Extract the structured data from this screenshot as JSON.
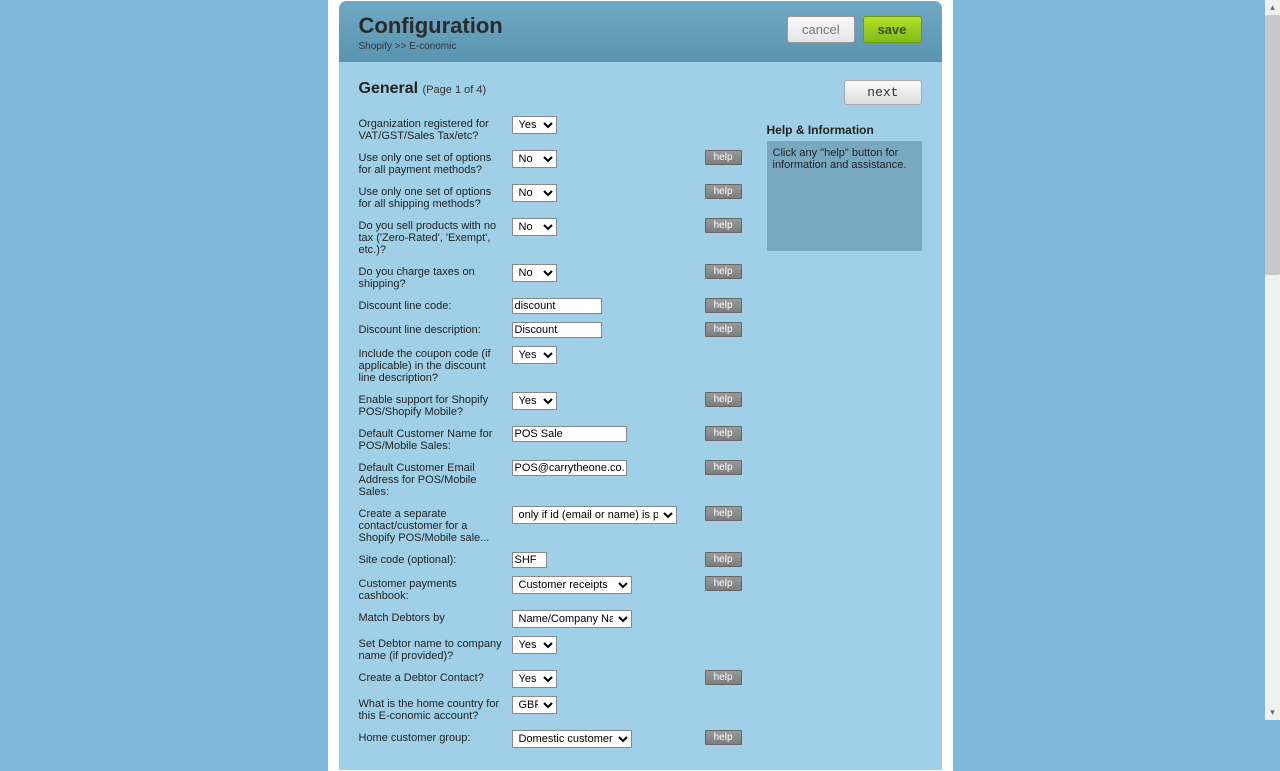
{
  "header": {
    "title": "Configuration",
    "breadcrumb": "Shopify >> E-conomic",
    "cancel": "cancel",
    "save": "save"
  },
  "section": {
    "title": "General",
    "pager": "(Page 1 of 4)",
    "next": "next"
  },
  "help": {
    "title": "Help & Information",
    "text": "Click any \"help\" button for information and assistance.",
    "button": "help"
  },
  "rows": [
    {
      "label": "Organization registered for VAT/GST/Sales Tax/etc?",
      "type": "select",
      "value": "Yes",
      "width": "narrow",
      "help": false
    },
    {
      "label": "Use only one set of options for all payment methods?",
      "type": "select",
      "value": "No",
      "width": "narrow",
      "help": true
    },
    {
      "label": "Use only one set of options for all shipping methods?",
      "type": "select",
      "value": "No",
      "width": "narrow",
      "help": true
    },
    {
      "label": "Do you sell products with no tax ('Zero-Rated', 'Exempt', etc.)?",
      "type": "select",
      "value": "No",
      "width": "narrow",
      "help": true
    },
    {
      "label": "Do you charge taxes on shipping?",
      "type": "select",
      "value": "No",
      "width": "narrow",
      "help": true
    },
    {
      "label": "Discount line code:",
      "type": "text",
      "value": "discount",
      "width": "med",
      "help": true
    },
    {
      "label": "Discount line description:",
      "type": "text",
      "value": "Discount",
      "width": "med",
      "help": true
    },
    {
      "label": "Include the coupon code (if applicable) in the discount line description?",
      "type": "select",
      "value": "Yes",
      "width": "narrow",
      "help": false
    },
    {
      "label": "Enable support for Shopify POS/Shopify Mobile?",
      "type": "select",
      "value": "Yes",
      "width": "narrow",
      "help": true
    },
    {
      "label": "Default Customer Name for POS/Mobile Sales:",
      "type": "text",
      "value": "POS Sale",
      "width": "wide",
      "help": true
    },
    {
      "label": "Default Customer Email Address for POS/Mobile Sales:",
      "type": "text",
      "value": "POS@carrytheone.co.uk",
      "width": "wide",
      "help": true
    },
    {
      "label": "Create a separate contact/customer for a Shopify POS/Mobile sale...",
      "type": "select",
      "value": "only if id (email or name) is provided",
      "width": "wide",
      "help": true
    },
    {
      "label": "Site code (optional):",
      "type": "text",
      "value": "SHF",
      "width": "short",
      "help": true
    },
    {
      "label": "Customer payments cashbook:",
      "type": "select",
      "value": "Customer receipts",
      "width": "med",
      "help": true
    },
    {
      "label": "Match Debtors by",
      "type": "select",
      "value": "Name/Company Name",
      "width": "med",
      "help": false
    },
    {
      "label": "Set Debtor name to company name (if provided)?",
      "type": "select",
      "value": "Yes",
      "width": "narrow",
      "help": false
    },
    {
      "label": "Create a Debtor Contact?",
      "type": "select",
      "value": "Yes",
      "width": "narrow",
      "help": true
    },
    {
      "label": "What is the home country for this E-conomic account?",
      "type": "select",
      "value": "GBR",
      "width": "narrow",
      "help": false
    },
    {
      "label": "Home customer group:",
      "type": "select",
      "value": "Domestic customers",
      "width": "med",
      "help": true
    }
  ]
}
